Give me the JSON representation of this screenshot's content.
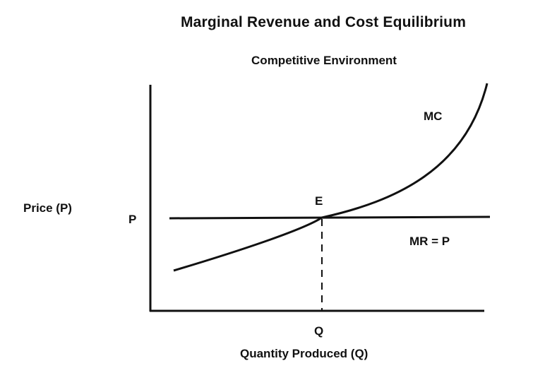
{
  "title": "Marginal Revenue and Cost Equilibrium",
  "subtitle": "Competitive Environment",
  "axes": {
    "y_label": "Price (P)",
    "x_label": "Quantity Produced (Q)",
    "y_tick": "P",
    "x_tick": "Q"
  },
  "curves": {
    "mc_label": "MC",
    "mr_label": "MR = P"
  },
  "equilibrium_label": "E"
}
